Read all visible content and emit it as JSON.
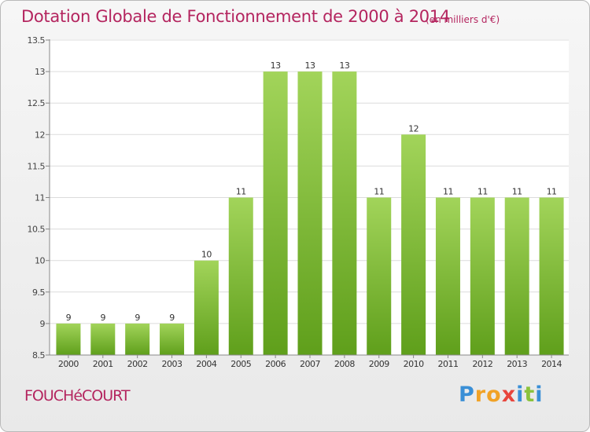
{
  "header": {
    "title": "Dotation Globale de Fonctionnement de 2000 à 2014",
    "subtitle": "(en milliers d'€)"
  },
  "footer": {
    "commune": "FOUCHéCOURT",
    "logo_letters": [
      "P",
      "r",
      "o",
      "x",
      "i",
      "t",
      "i"
    ],
    "logo_colors": [
      "#3a8fd6",
      "#f1a226",
      "#f1a226",
      "#e8453c",
      "#3a8fd6",
      "#8ac23b",
      "#3a8fd6"
    ]
  },
  "colors": {
    "title": "#b4255f",
    "bar_light": "#a2d45a",
    "bar_dark": "#5f9f1b",
    "grid": "#dcdcdc"
  },
  "chart_data": {
    "type": "bar",
    "title": "Dotation Globale de Fonctionnement de 2000 à 2014",
    "subtitle": "(en milliers d'€)",
    "categories": [
      "2000",
      "2001",
      "2002",
      "2003",
      "2004",
      "2005",
      "2006",
      "2007",
      "2008",
      "2009",
      "2010",
      "2011",
      "2012",
      "2013",
      "2014"
    ],
    "values": [
      9,
      9,
      9,
      9,
      10,
      11,
      13,
      13,
      13,
      11,
      12,
      11,
      11,
      11,
      11
    ],
    "labels": [
      "9",
      "9",
      "9",
      "9",
      "10",
      "11",
      "13",
      "13",
      "13",
      "11",
      "12",
      "11",
      "11",
      "11",
      "11"
    ],
    "yticks": [
      "8.5",
      "9",
      "9.5",
      "10",
      "10.5",
      "11",
      "11.5",
      "12",
      "12.5",
      "13",
      "13.5"
    ],
    "ylim": [
      8.5,
      13.5
    ],
    "grid": true,
    "legend": "none"
  }
}
